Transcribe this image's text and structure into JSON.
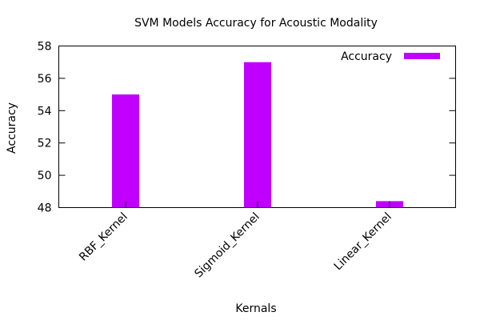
{
  "chart_data": {
    "type": "bar",
    "title": "SVM Models Accuracy for Acoustic Modality",
    "xlabel": "Kernals",
    "ylabel": "Accuracy",
    "categories": [
      "RBF_Kernel",
      "Sigmoid_Kernel",
      "Linear_Kernel"
    ],
    "series": [
      {
        "name": "Accuracy",
        "values": [
          55.0,
          57.0,
          48.4
        ],
        "color": "#bf00ff"
      }
    ],
    "ylim": [
      48,
      58
    ],
    "yticks": [
      48,
      50,
      52,
      54,
      56,
      58
    ],
    "grid": false,
    "legend": {
      "position": "top-right"
    },
    "x_tick_rotation": "45"
  }
}
